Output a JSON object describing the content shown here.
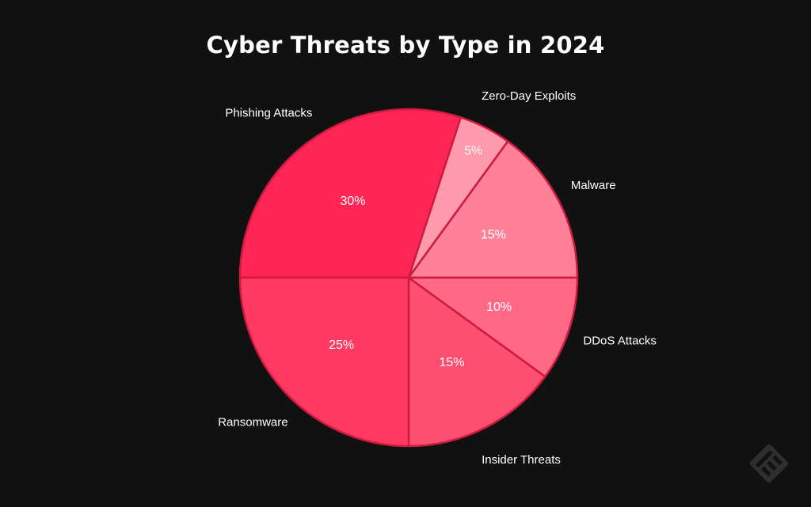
{
  "chart_data": {
    "type": "pie",
    "title": "Cyber Threats by Type in 2024",
    "slices": [
      {
        "label": "Phishing Attacks",
        "value": 30,
        "display": "30%",
        "color": "#ff2656"
      },
      {
        "label": "Zero-Day Exploits",
        "value": 5,
        "display": "5%",
        "color": "#ff99ac"
      },
      {
        "label": "Malware",
        "value": 15,
        "display": "15%",
        "color": "#ff8197"
      },
      {
        "label": "DDoS Attacks",
        "value": 10,
        "display": "10%",
        "color": "#ff6985"
      },
      {
        "label": "Insider Threats",
        "value": 15,
        "display": "15%",
        "color": "#ff4f71"
      },
      {
        "label": "Ransomware",
        "value": 25,
        "display": "25%",
        "color": "#ff3a62"
      }
    ],
    "start_angle_deg": 180,
    "direction": "clockwise",
    "border_color": "#cc1a40",
    "legend": "none"
  },
  "watermark": {
    "icon": "brand-logo-icon"
  }
}
